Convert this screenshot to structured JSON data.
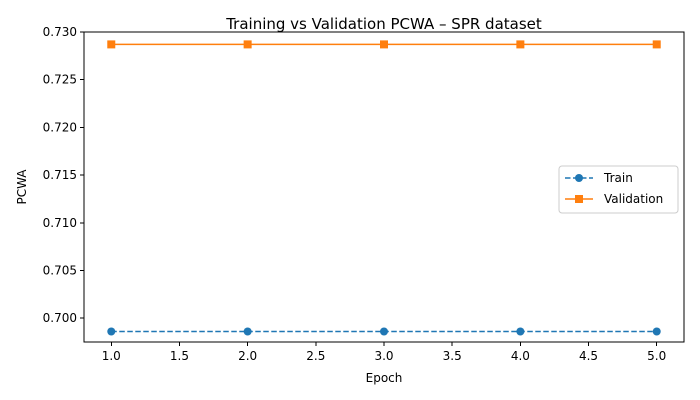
{
  "chart_data": {
    "type": "line",
    "title": "Training vs Validation PCWA – SPR dataset",
    "xlabel": "Epoch",
    "ylabel": "PCWA",
    "xlim": [
      0.8,
      5.2
    ],
    "ylim": [
      0.6975,
      0.73
    ],
    "xticks": [
      1.0,
      1.5,
      2.0,
      2.5,
      3.0,
      3.5,
      4.0,
      4.5,
      5.0
    ],
    "xtick_labels": [
      "1.0",
      "1.5",
      "2.0",
      "2.5",
      "3.0",
      "3.5",
      "4.0",
      "4.5",
      "5.0"
    ],
    "yticks": [
      0.7,
      0.705,
      0.71,
      0.715,
      0.72,
      0.725,
      0.73
    ],
    "ytick_labels": [
      "0.700",
      "0.705",
      "0.710",
      "0.715",
      "0.720",
      "0.725",
      "0.730"
    ],
    "grid": false,
    "legend_position": "center-right",
    "x": [
      1,
      2,
      3,
      4,
      5
    ],
    "series": [
      {
        "name": "Train",
        "values": [
          0.6986,
          0.6986,
          0.6986,
          0.6986,
          0.6986
        ],
        "color": "#1f77b4",
        "line_style": "dashed",
        "marker": "circle"
      },
      {
        "name": "Validation",
        "values": [
          0.7287,
          0.7287,
          0.7287,
          0.7287,
          0.7287
        ],
        "color": "#ff7f0e",
        "line_style": "solid",
        "marker": "square"
      }
    ]
  }
}
